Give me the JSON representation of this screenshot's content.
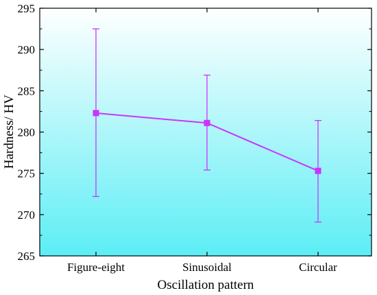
{
  "chart_data": {
    "type": "line",
    "title": "",
    "xlabel": "Oscillation pattern",
    "ylabel": "Hardness/ HV",
    "categories": [
      "Figure-eight",
      "Sinusoidal",
      "Circular"
    ],
    "ylim": [
      265,
      295
    ],
    "yticks": [
      265,
      270,
      275,
      280,
      285,
      290,
      295
    ],
    "y_tick_labels": [
      "265",
      "270",
      "275",
      "280",
      "285",
      "290",
      "295"
    ],
    "series": [
      {
        "values": [
          282.3,
          281.1,
          275.3
        ],
        "error_low": [
          272.2,
          275.4,
          269.1
        ],
        "error_high": [
          292.5,
          286.9,
          281.4
        ],
        "color": "#cc33ff",
        "marker": "square"
      }
    ],
    "grid": false,
    "legend": "none",
    "background_gradient": [
      "#ffffff",
      "#5ceef5"
    ]
  }
}
